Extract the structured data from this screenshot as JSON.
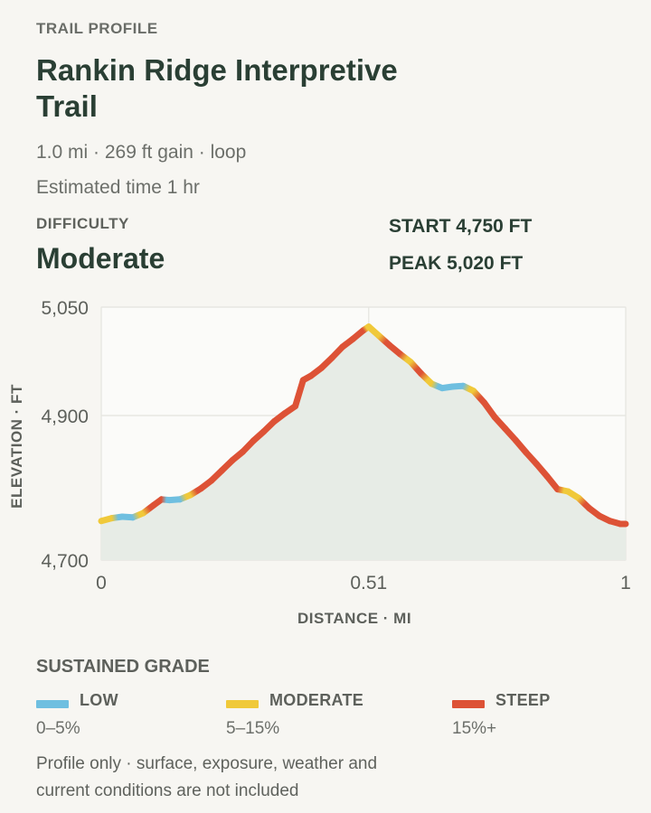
{
  "header": {
    "eyebrow": "TRAIL PROFILE",
    "title": "Rankin Ridge Interpretive Trail",
    "meta_line1": "1.0 mi · 269 ft gain · loop",
    "meta_line2": "Estimated time 1 hr"
  },
  "difficulty": {
    "label": "DIFFICULTY",
    "value": "Moderate"
  },
  "stats": {
    "start": "START 4,750 FT",
    "peak": "PEAK 5,020 FT"
  },
  "chart_data": {
    "type": "line",
    "xlabel": "DISTANCE · MI",
    "ylabel": "ELEVATION · FT",
    "xlim": [
      0,
      1
    ],
    "ylim": [
      4700,
      5050
    ],
    "x_ticks": [
      0,
      0.51,
      1
    ],
    "x_tick_labels": [
      "0",
      "0.51",
      "1"
    ],
    "y_ticks": [
      4700,
      4900,
      5050
    ],
    "y_tick_labels": [
      "4,700",
      "4,900",
      "5,050"
    ],
    "grid": true,
    "fill_color": "#e7ece6",
    "grade_colors": {
      "low": "#6fbfe0",
      "moderate": "#f0c93a",
      "steep": "#dd5236"
    },
    "series": [
      {
        "x": [
          0,
          0.02,
          0.04,
          0.06,
          0.08,
          0.1,
          0.115,
          0.13,
          0.15,
          0.17,
          0.19,
          0.21,
          0.23,
          0.25,
          0.27,
          0.29,
          0.31,
          0.33,
          0.35,
          0.37,
          0.385,
          0.4,
          0.42,
          0.44,
          0.46,
          0.48,
          0.5,
          0.51,
          0.53,
          0.55,
          0.57,
          0.59,
          0.61,
          0.63,
          0.65,
          0.67,
          0.69,
          0.71,
          0.73,
          0.75,
          0.77,
          0.79,
          0.81,
          0.83,
          0.85,
          0.87,
          0.89,
          0.91,
          0.93,
          0.95,
          0.97,
          0.99,
          1.0
        ],
        "y": [
          4754,
          4758,
          4760,
          4759,
          4765,
          4776,
          4784,
          4783,
          4784,
          4790,
          4799,
          4810,
          4824,
          4838,
          4850,
          4865,
          4878,
          4892,
          4903,
          4913,
          4949,
          4955,
          4966,
          4980,
          4995,
          5006,
          5018,
          5023,
          5010,
          4997,
          4985,
          4974,
          4958,
          4944,
          4938,
          4940,
          4941,
          4934,
          4918,
          4898,
          4882,
          4866,
          4849,
          4833,
          4816,
          4798,
          4795,
          4786,
          4772,
          4761,
          4754,
          4750,
          4750
        ],
        "grade": [
          "moderate",
          "low",
          "low",
          "moderate",
          "steep",
          "steep",
          "low",
          "low",
          "moderate",
          "steep",
          "steep",
          "steep",
          "steep",
          "steep",
          "steep",
          "steep",
          "steep",
          "steep",
          "steep",
          "steep",
          "steep",
          "steep",
          "steep",
          "steep",
          "steep",
          "steep",
          "moderate",
          "moderate",
          "steep",
          "steep",
          "moderate",
          "steep",
          "moderate",
          "low",
          "low",
          "low",
          "moderate",
          "steep",
          "steep",
          "steep",
          "steep",
          "steep",
          "steep",
          "steep",
          "steep",
          "moderate",
          "moderate",
          "steep",
          "steep",
          "steep",
          "steep",
          "steep"
        ]
      }
    ]
  },
  "legend": {
    "title": "SUSTAINED GRADE",
    "items": [
      {
        "name": "LOW",
        "range": "0–5%",
        "color": "#6fbfe0"
      },
      {
        "name": "MODERATE",
        "range": "5–15%",
        "color": "#f0c93a"
      },
      {
        "name": "STEEP",
        "range": "15%+",
        "color": "#dd5236"
      }
    ]
  },
  "footnote": "Profile only · surface, exposure, weather and current conditions are not included"
}
